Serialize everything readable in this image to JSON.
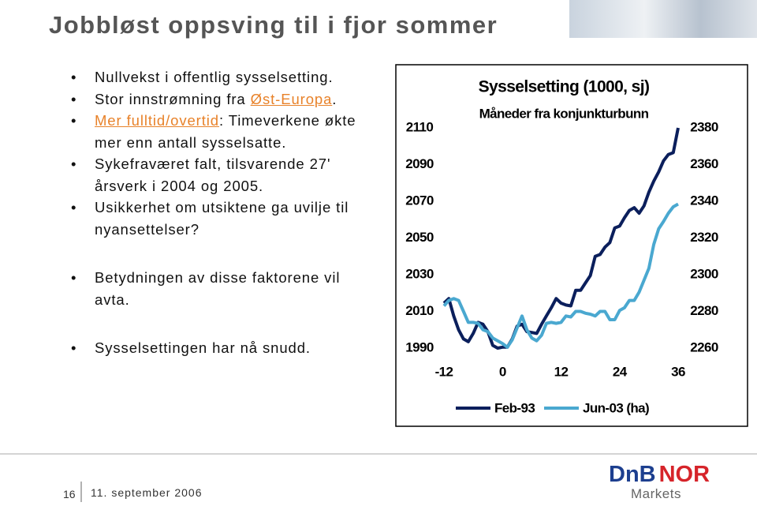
{
  "title": "Jobbløst oppsving til i fjor sommer",
  "bullets": [
    {
      "parts": [
        {
          "text": "Nullvekst i offentlig sysselsetting."
        }
      ]
    },
    {
      "parts": [
        {
          "text": "Stor innstrømning fra "
        },
        {
          "text": "Øst-Europa",
          "link": true
        },
        {
          "text": "."
        }
      ]
    },
    {
      "parts": [
        {
          "text": "Mer fulltid/overtid",
          "link": true
        },
        {
          "text": ": Timeverkene økte mer enn antall sysselsatte."
        }
      ]
    },
    {
      "parts": [
        {
          "text": "Sykefraværet falt, tilsvarende 27' årsverk i 2004 og 2005."
        }
      ]
    },
    {
      "parts": [
        {
          "text": "Usikkerhet om utsiktene ga uvilje til nyansettelser?"
        }
      ]
    },
    {
      "parts": [
        {
          "text": "Betydningen av disse faktorene vil avta."
        }
      ],
      "gap": true
    },
    {
      "parts": [
        {
          "text": "Sysselsettingen har nå snudd."
        }
      ],
      "gap": true
    }
  ],
  "footer": {
    "page": "16",
    "date": "11. september 2006"
  },
  "logo": {
    "left": "DnB",
    "right": "NOR",
    "sub": "Markets"
  },
  "chart_data": {
    "type": "line",
    "title": "Sysselsetting (1000, sj)",
    "subtitle": "Måneder fra konjunkturbunn",
    "x": [
      -12,
      -11,
      -10,
      -9,
      -8,
      -7,
      -6,
      -5,
      -4,
      -3,
      -2,
      -1,
      0,
      1,
      2,
      3,
      4,
      5,
      6,
      7,
      8,
      9,
      10,
      11,
      12,
      13,
      14,
      15,
      16,
      17,
      18,
      19,
      20,
      21,
      22,
      23,
      24,
      25,
      26,
      27,
      28,
      29,
      30,
      31,
      32,
      33,
      34,
      35,
      36
    ],
    "xlim": [
      -12,
      36
    ],
    "xticks": [
      -12,
      0,
      12,
      24,
      36
    ],
    "ylim": [
      1990,
      2110
    ],
    "yticks": [
      1990,
      2010,
      2030,
      2050,
      2070,
      2090,
      2110
    ],
    "y2lim": [
      2260,
      2380
    ],
    "y2ticks": [
      2260,
      2280,
      2300,
      2320,
      2340,
      2360,
      2380
    ],
    "series": [
      {
        "name": "Feb-93",
        "color": "#0b1f5c",
        "values": [
          2014.5,
          2017,
          2007.5,
          2000,
          1995,
          1993.5,
          1998,
          2004,
          2003,
          1999,
          1991.5,
          1990,
          1990.5,
          1990.5,
          1995,
          2002,
          2003,
          1999,
          1998.5,
          1998,
          2003,
          2007.5,
          2012,
          2017,
          2014.5,
          2013.5,
          2013,
          2021.5,
          2021.5,
          2025.5,
          2029.5,
          2040,
          2041,
          2045,
          2047.5,
          2055.5,
          2056.5,
          2061,
          2065,
          2066.5,
          2063.5,
          2067.5,
          2075,
          2081,
          2086,
          2092,
          2095.5,
          2096.5,
          2110
        ]
      },
      {
        "name": "Jun-03 (ha)",
        "color": "#4aa8d0",
        "axis": "y2",
        "values": [
          2283,
          2286,
          2287,
          2286,
          2280,
          2274,
          2274,
          2273.5,
          2270,
          2269,
          2265.5,
          2264,
          2262.5,
          2260.5,
          2264.5,
          2271,
          2277.5,
          2270,
          2265.5,
          2264,
          2267,
          2273.5,
          2274,
          2273.5,
          2274,
          2277.5,
          2277,
          2280,
          2280,
          2279,
          2278.5,
          2277.5,
          2280,
          2280,
          2275.5,
          2275.5,
          2280.5,
          2282,
          2286,
          2286,
          2290.5,
          2297,
          2303.5,
          2316.5,
          2325,
          2329,
          2333.5,
          2337,
          2338.5
        ]
      }
    ]
  }
}
